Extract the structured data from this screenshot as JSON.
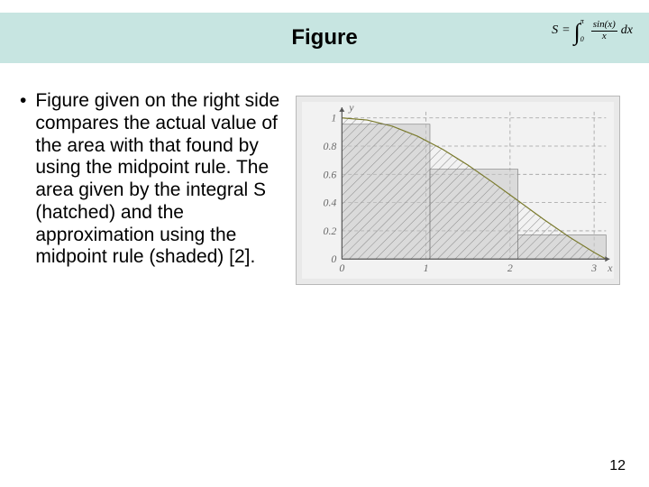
{
  "title_bar": {
    "background_color": "#c7e5e1",
    "text": "Figure",
    "font_size": 24
  },
  "formula": {
    "lhs": "S",
    "equals": "=",
    "lower_limit": "0",
    "upper_limit": "π",
    "numerator": "sin(x)",
    "denominator": "x",
    "dx": "dx"
  },
  "body": {
    "bullet_text": "Figure given on the right side compares the actual value of the area with that found by using the midpoint rule. The area given by the integral S (hatched) and the approximation using the midpoint rule (shaded) [2]."
  },
  "chart": {
    "type": "area",
    "background_color": "#f2f2f2",
    "frame_border_color": "#b8b8b8",
    "axis_color": "#555555",
    "grid_color": "#a0a0a0",
    "grid_dash": "4 3",
    "hatch_color": "#8a8a8a",
    "shaded_fill": "#c7c7c7",
    "shaded_opacity": 0.55,
    "curve_color": "#7a7a2c",
    "curve_width": 1.2,
    "xlim": [
      0,
      3.1416
    ],
    "ylim": [
      0,
      1.05
    ],
    "x_ticks": [
      {
        "v": 0,
        "label": "0"
      },
      {
        "v": 1,
        "label": "1"
      },
      {
        "v": 2,
        "label": "2"
      },
      {
        "v": 3,
        "label": "3"
      }
    ],
    "y_ticks": [
      {
        "v": 0,
        "label": "0"
      },
      {
        "v": 0.2,
        "label": "0.2"
      },
      {
        "v": 0.4,
        "label": "0.4"
      },
      {
        "v": 0.6,
        "label": "0.6"
      },
      {
        "v": 0.8,
        "label": "0.8"
      },
      {
        "v": 1,
        "label": "1"
      }
    ],
    "x_axis_label": "x",
    "y_axis_label": "y",
    "curve_points": [
      {
        "x": 0.0,
        "y": 1.0
      },
      {
        "x": 0.3,
        "y": 0.985
      },
      {
        "x": 0.6,
        "y": 0.941
      },
      {
        "x": 0.9,
        "y": 0.87
      },
      {
        "x": 1.2,
        "y": 0.777
      },
      {
        "x": 1.5,
        "y": 0.665
      },
      {
        "x": 1.8,
        "y": 0.541
      },
      {
        "x": 2.1,
        "y": 0.411
      },
      {
        "x": 2.4,
        "y": 0.281
      },
      {
        "x": 2.7,
        "y": 0.158
      },
      {
        "x": 3.0,
        "y": 0.047
      },
      {
        "x": 3.1416,
        "y": 0.0
      }
    ],
    "midpoint_bars": [
      {
        "x0": 0.0,
        "x1": 1.0472,
        "y": 0.955
      },
      {
        "x0": 1.0472,
        "x1": 2.0944,
        "y": 0.636
      },
      {
        "x0": 2.0944,
        "x1": 3.1416,
        "y": 0.171
      }
    ],
    "label_fontsize": 12,
    "label_color": "#6a6a6a"
  },
  "page_number": "12"
}
